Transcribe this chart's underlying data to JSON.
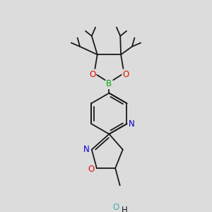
{
  "background_color": "#dcdcdc",
  "bond_color": "#1a1a1a",
  "bond_width": 1.3,
  "fig_size": [
    3.0,
    3.0
  ],
  "dpi": 100,
  "colors": {
    "B": "#00aa00",
    "O": "#dd1100",
    "N": "#0000cc",
    "OH": "#44aaaa",
    "C": "#1a1a1a"
  },
  "font_size": 8.5,
  "methyl_font_size": 7.0
}
